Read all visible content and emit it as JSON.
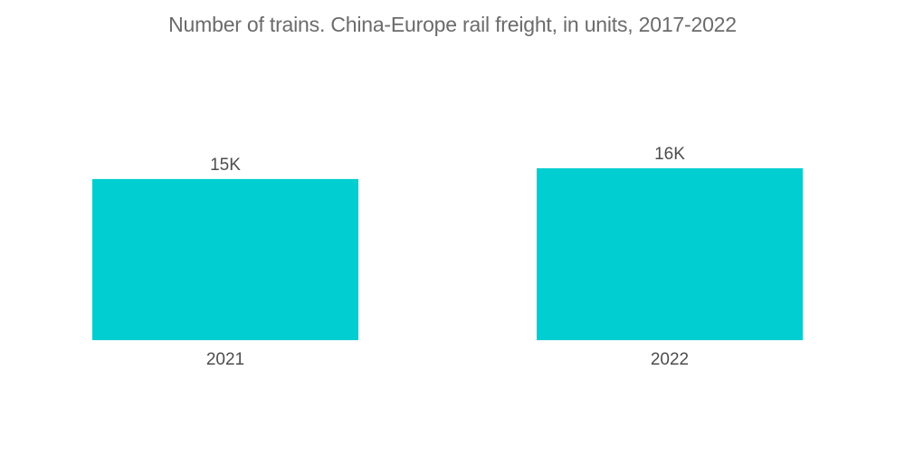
{
  "chart_data": {
    "type": "bar",
    "title": "Number of trains. China-Europe rail freight, in units, 2017-2022",
    "categories": [
      "2021",
      "2022"
    ],
    "values": [
      15000,
      16000
    ],
    "value_labels": [
      "15K",
      "16K"
    ],
    "xlabel": "",
    "ylabel": "",
    "ylim": [
      0,
      16000
    ],
    "grid": false,
    "legend": "none",
    "bar_color": "#00ced1"
  }
}
